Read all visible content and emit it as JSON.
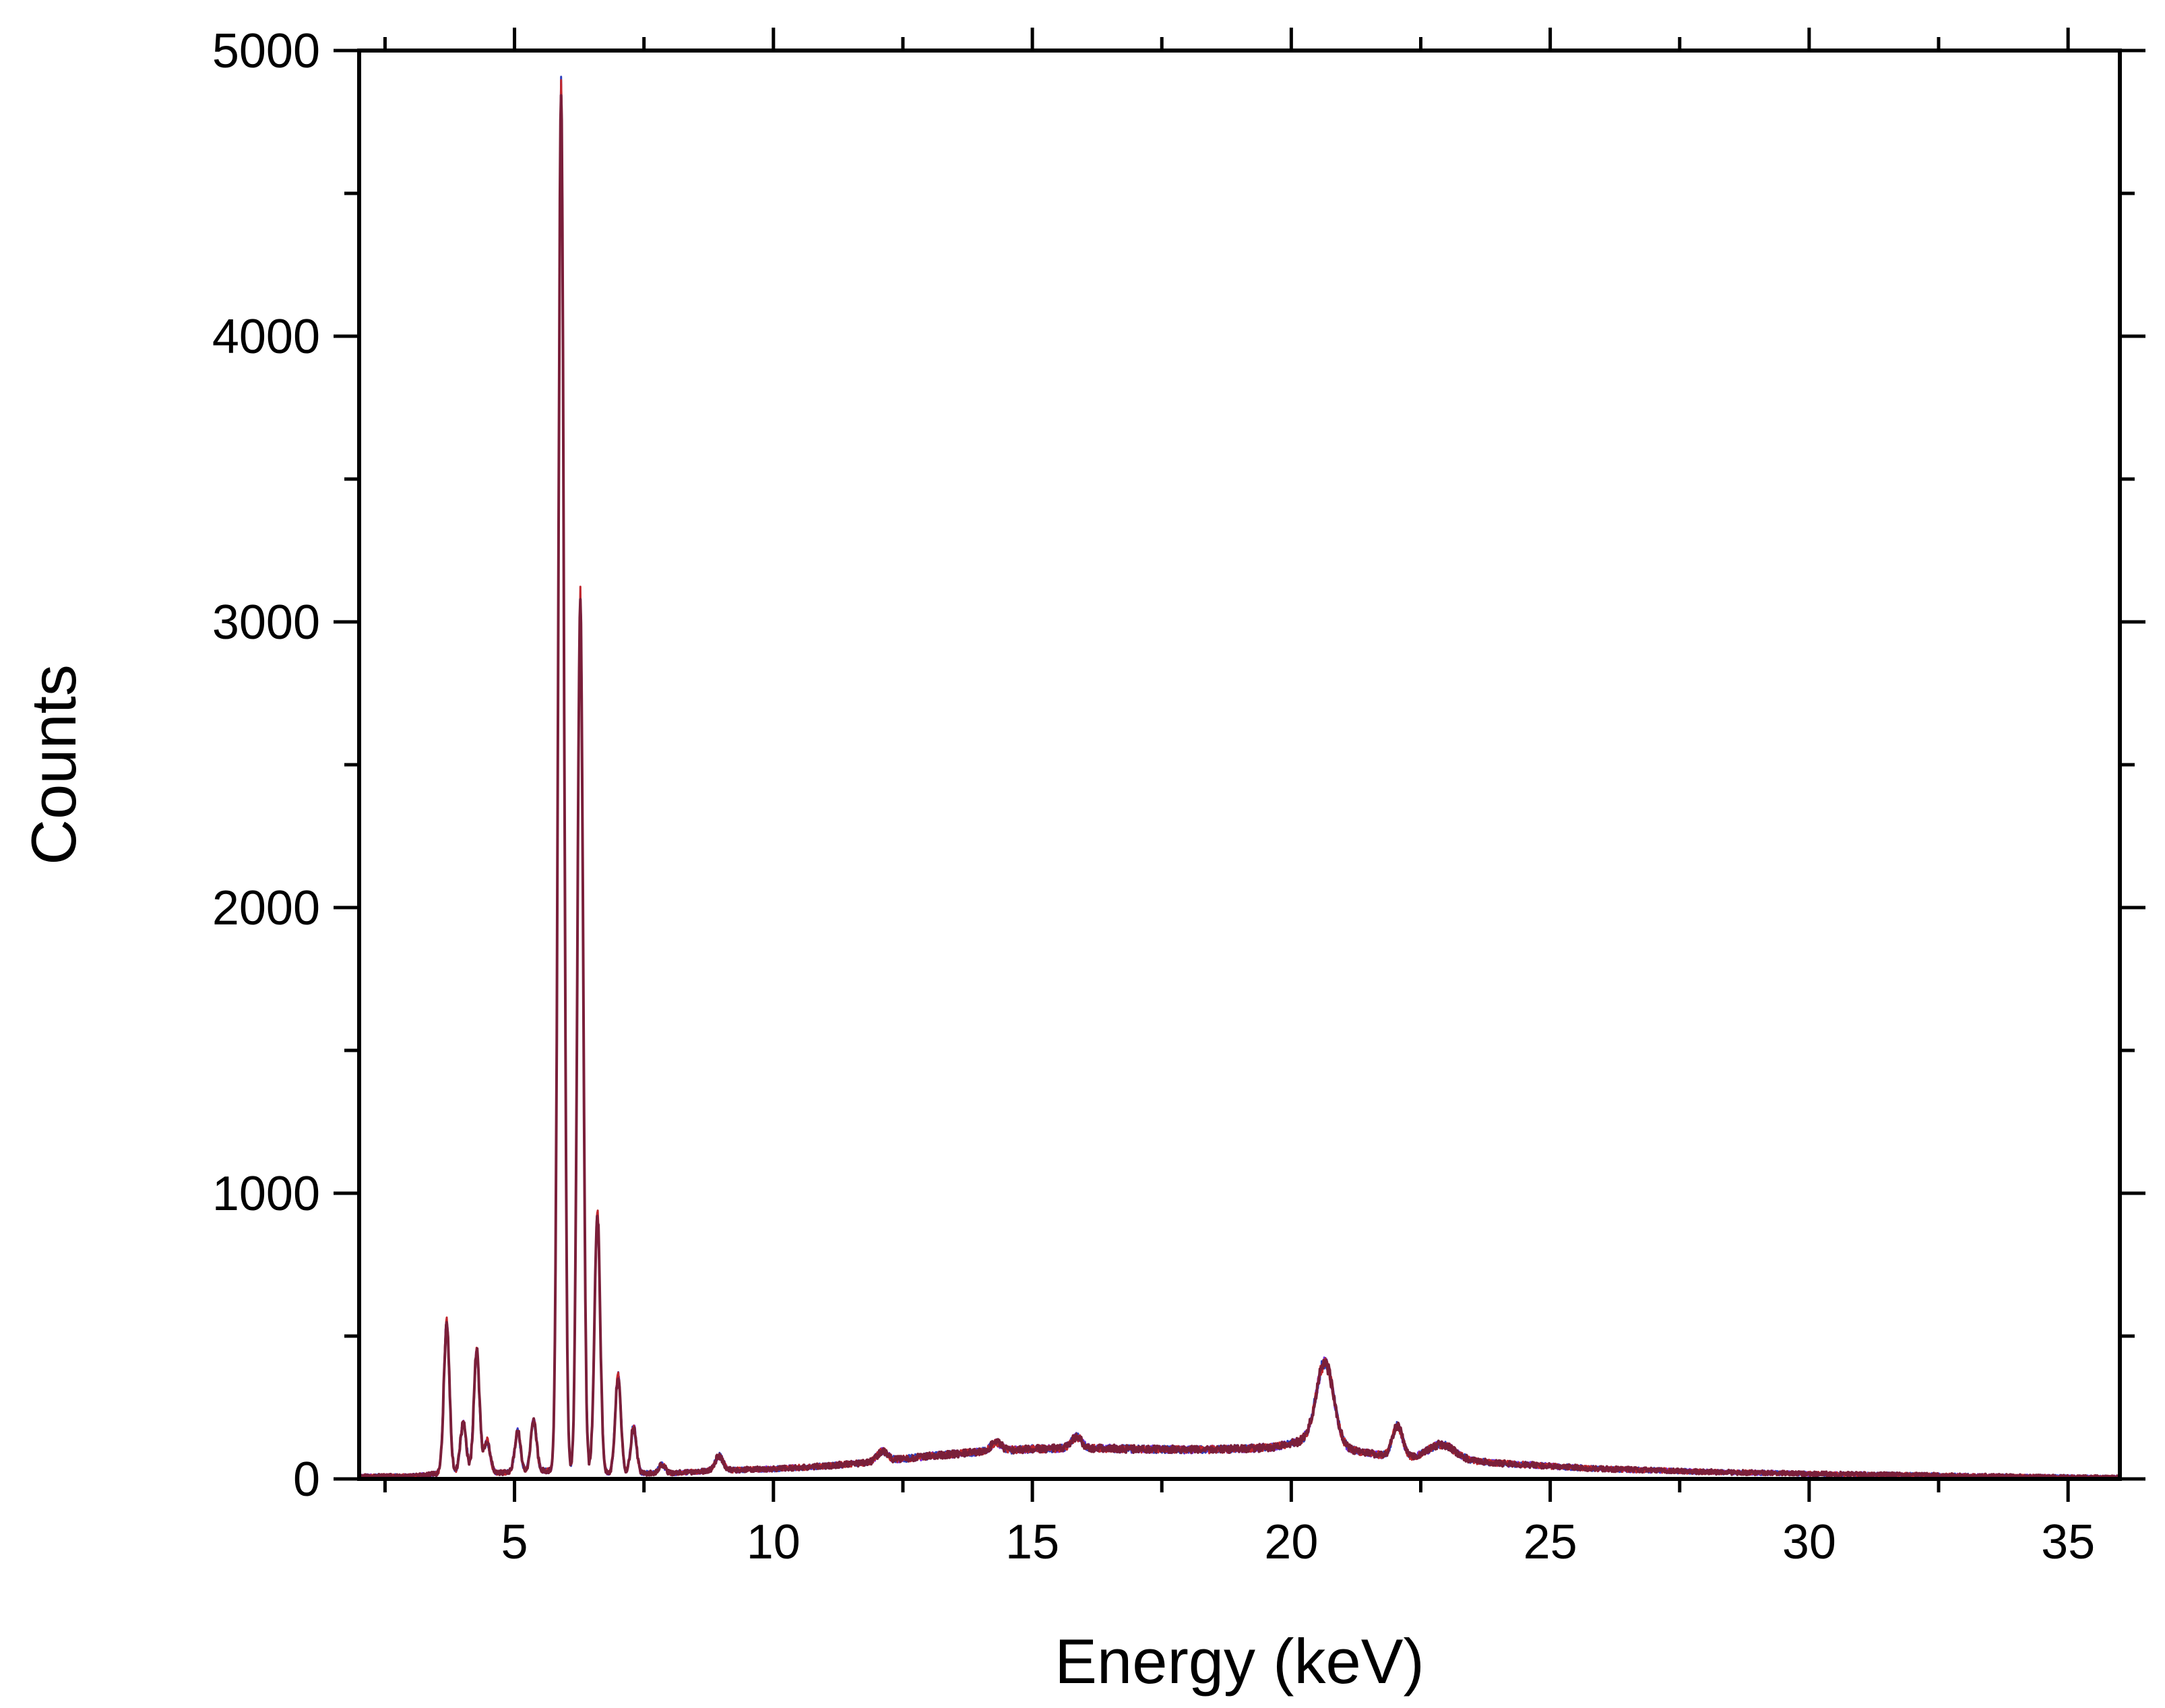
{
  "chart_data": {
    "type": "line",
    "title": "",
    "xlabel": "Energy (keV)",
    "ylabel": "Counts",
    "xlim": [
      2,
      36
    ],
    "ylim": [
      0,
      5000
    ],
    "x_ticks": [
      5,
      10,
      15,
      20,
      25,
      30,
      35
    ],
    "y_ticks": [
      0,
      1000,
      2000,
      3000,
      4000,
      5000
    ],
    "grid": false,
    "legend": "none",
    "series": [
      {
        "color": "#7a1f3a",
        "secondary_colors": [
          "#7b2be2",
          "#2b3fbf",
          "#c0262d"
        ],
        "baseline": [
          [
            2,
            10
          ],
          [
            3,
            10
          ],
          [
            3.5,
            18
          ],
          [
            4.8,
            22
          ],
          [
            5.4,
            30
          ],
          [
            7,
            20
          ],
          [
            8,
            20
          ],
          [
            9,
            30
          ],
          [
            10,
            35
          ],
          [
            11,
            45
          ],
          [
            12,
            60
          ],
          [
            13,
            80
          ],
          [
            14,
            95
          ],
          [
            15,
            105
          ],
          [
            16,
            108
          ],
          [
            17,
            105
          ],
          [
            18,
            102
          ],
          [
            19,
            105
          ],
          [
            19.6,
            110
          ],
          [
            20.2,
            130
          ],
          [
            22,
            75
          ],
          [
            23,
            70
          ],
          [
            24,
            55
          ],
          [
            25,
            45
          ],
          [
            26,
            35
          ],
          [
            28,
            25
          ],
          [
            30,
            18
          ],
          [
            32,
            14
          ],
          [
            34,
            9
          ],
          [
            36,
            5
          ]
        ],
        "peaks": [
          {
            "x": 3.69,
            "y": 520,
            "width": 0.055
          },
          {
            "x": 4.01,
            "y": 170,
            "width": 0.06
          },
          {
            "x": 4.27,
            "y": 420,
            "width": 0.055
          },
          {
            "x": 4.47,
            "y": 110,
            "width": 0.06
          },
          {
            "x": 5.06,
            "y": 140,
            "width": 0.055
          },
          {
            "x": 5.37,
            "y": 175,
            "width": 0.055
          },
          {
            "x": 5.9,
            "y": 4850,
            "width": 0.055
          },
          {
            "x": 6.27,
            "y": 3050,
            "width": 0.055
          },
          {
            "x": 6.6,
            "y": 900,
            "width": 0.055
          },
          {
            "x": 7.0,
            "y": 340,
            "width": 0.055
          },
          {
            "x": 7.3,
            "y": 160,
            "width": 0.055
          },
          {
            "x": 7.85,
            "y": 30,
            "width": 0.06
          },
          {
            "x": 8.95,
            "y": 50,
            "width": 0.08
          },
          {
            "x": 12.1,
            "y": 35,
            "width": 0.1
          },
          {
            "x": 14.3,
            "y": 30,
            "width": 0.1
          },
          {
            "x": 15.85,
            "y": 40,
            "width": 0.1
          },
          {
            "x": 20.65,
            "y": 290,
            "width": 0.17
          },
          {
            "x": 22.05,
            "y": 110,
            "width": 0.1
          },
          {
            "x": 22.9,
            "y": 50,
            "width": 0.25
          }
        ]
      }
    ]
  }
}
